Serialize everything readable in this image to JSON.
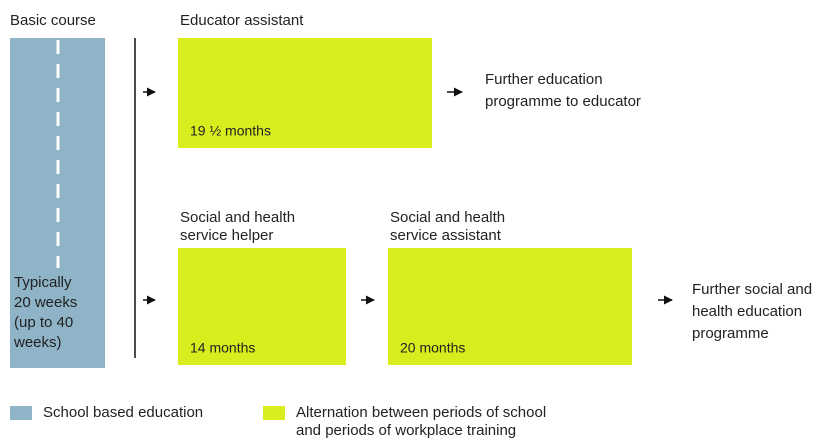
{
  "basic_course": {
    "title": "Basic course",
    "duration": [
      "Typically",
      "20 weeks",
      "(up to 40",
      "weeks)"
    ]
  },
  "programmes": [
    {
      "title": [
        "Educator assistant"
      ],
      "duration": "19 ½ months"
    },
    {
      "title": [
        "Social and health",
        "service helper"
      ],
      "duration": "14 months"
    },
    {
      "title": [
        "Social and health",
        "service assistant"
      ],
      "duration": "20 months"
    }
  ],
  "outcomes": [
    {
      "lines": [
        "Further education",
        "programme to educator"
      ]
    },
    {
      "lines": [
        "Further social and",
        "health education",
        "programme"
      ]
    }
  ],
  "legend": [
    {
      "lines": [
        "School based education"
      ],
      "color": "#8fb3c7"
    },
    {
      "lines": [
        "Alternation between periods of school",
        "and periods of workplace training"
      ],
      "color": "#d8ec1e"
    }
  ]
}
